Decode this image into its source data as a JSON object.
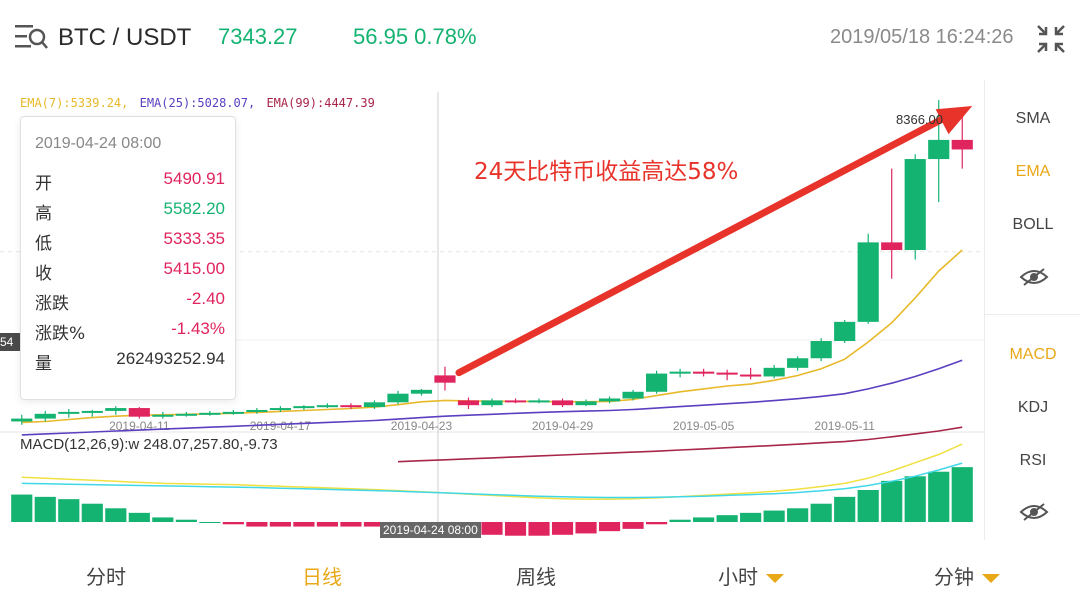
{
  "header": {
    "pair": "BTC / USDT",
    "price": "7343.27",
    "change": "56.95 0.78%",
    "timestamp": "2019/05/18 16:24:26"
  },
  "ema_legend": {
    "ema7": "EMA(7):5339.24,",
    "ema25": "EMA(25):5028.07,",
    "ema99": "EMA(99):4447.39"
  },
  "tooltip": {
    "date": "2019-04-24 08:00",
    "rows": [
      {
        "label": "开",
        "value": "5490.91",
        "color": "#e0245e"
      },
      {
        "label": "高",
        "value": "5582.20",
        "color": "#15b371"
      },
      {
        "label": "低",
        "value": "5333.35",
        "color": "#e0245e"
      },
      {
        "label": "收",
        "value": "5415.00",
        "color": "#e0245e"
      },
      {
        "label": "涨跌",
        "value": "-2.40",
        "color": "#e0245e"
      },
      {
        "label": "涨跌%",
        "value": "-1.43%",
        "color": "#e0245e"
      },
      {
        "label": "量",
        "value": "262493252.94",
        "color": "#333333"
      }
    ]
  },
  "annotation": "24天比特币收益高达58%",
  "high_label": "8366.00",
  "left_tag": "54",
  "crosshair_label": "2019-04-24 08:00",
  "macd_label": "MACD(12,26,9):w 248.07,257.80,-9.73",
  "side_menu": {
    "sma": "SMA",
    "ema": "EMA",
    "boll": "BOLL",
    "macd": "MACD",
    "kdj": "KDJ",
    "rsi": "RSI"
  },
  "bottom_tabs": {
    "fenshi": "分时",
    "rixian": "日线",
    "zhouxian": "周线",
    "xiaoshi": "小时",
    "fenzhong": "分钟"
  },
  "colors": {
    "up": "#15b371",
    "down": "#e0245e",
    "ema7": "#e8b92a",
    "ema25": "#5b3fc0",
    "ema99": "#a8264a",
    "accent": "#e8a817",
    "arrow": "#e8332b"
  },
  "chart_data": {
    "type": "candlestick",
    "x_ticks": [
      "2019-04-11",
      "2019-04-17",
      "2019-04-23",
      "2019-04-29",
      "2019-05-05",
      "2019-05-11"
    ],
    "ylim": [
      4900,
      8450
    ],
    "candles": [
      {
        "date": "2019-04-06",
        "open": 5010,
        "high": 5080,
        "close": 5040,
        "low": 4975
      },
      {
        "date": "2019-04-07",
        "open": 5040,
        "high": 5120,
        "close": 5090,
        "low": 5010
      },
      {
        "date": "2019-04-08",
        "open": 5090,
        "high": 5140,
        "close": 5110,
        "low": 5050
      },
      {
        "date": "2019-04-09",
        "open": 5110,
        "high": 5130,
        "close": 5120,
        "low": 5060
      },
      {
        "date": "2019-04-10",
        "open": 5120,
        "high": 5170,
        "close": 5150,
        "low": 5080
      },
      {
        "date": "2019-04-11",
        "open": 5150,
        "high": 5160,
        "close": 5060,
        "low": 5040
      },
      {
        "date": "2019-04-12",
        "open": 5070,
        "high": 5110,
        "close": 5080,
        "low": 5040
      },
      {
        "date": "2019-04-13",
        "open": 5080,
        "high": 5110,
        "close": 5090,
        "low": 5060
      },
      {
        "date": "2019-04-14",
        "open": 5090,
        "high": 5120,
        "close": 5100,
        "low": 5070
      },
      {
        "date": "2019-04-15",
        "open": 5100,
        "high": 5130,
        "close": 5110,
        "low": 5080
      },
      {
        "date": "2019-04-16",
        "open": 5110,
        "high": 5150,
        "close": 5130,
        "low": 5090
      },
      {
        "date": "2019-04-17",
        "open": 5130,
        "high": 5170,
        "close": 5150,
        "low": 5110
      },
      {
        "date": "2019-04-18",
        "open": 5150,
        "high": 5180,
        "close": 5170,
        "low": 5130
      },
      {
        "date": "2019-04-19",
        "open": 5170,
        "high": 5200,
        "close": 5180,
        "low": 5150
      },
      {
        "date": "2019-04-20",
        "open": 5180,
        "high": 5200,
        "close": 5160,
        "low": 5140
      },
      {
        "date": "2019-04-21",
        "open": 5160,
        "high": 5230,
        "close": 5210,
        "low": 5140
      },
      {
        "date": "2019-04-22",
        "open": 5210,
        "high": 5330,
        "close": 5300,
        "low": 5190
      },
      {
        "date": "2019-04-23",
        "open": 5300,
        "high": 5350,
        "close": 5340,
        "low": 5280
      },
      {
        "date": "2019-04-24",
        "open": 5490.91,
        "high": 5582.2,
        "close": 5415.0,
        "low": 5333.35
      },
      {
        "date": "2019-04-25",
        "open": 5230,
        "high": 5260,
        "close": 5180,
        "low": 5140
      },
      {
        "date": "2019-04-26",
        "open": 5180,
        "high": 5250,
        "close": 5230,
        "low": 5160
      },
      {
        "date": "2019-04-27",
        "open": 5230,
        "high": 5250,
        "close": 5220,
        "low": 5200
      },
      {
        "date": "2019-04-28",
        "open": 5220,
        "high": 5250,
        "close": 5230,
        "low": 5200
      },
      {
        "date": "2019-04-29",
        "open": 5230,
        "high": 5250,
        "close": 5180,
        "low": 5160
      },
      {
        "date": "2019-04-30",
        "open": 5180,
        "high": 5240,
        "close": 5220,
        "low": 5170
      },
      {
        "date": "2019-05-01",
        "open": 5220,
        "high": 5270,
        "close": 5250,
        "low": 5200
      },
      {
        "date": "2019-05-02",
        "open": 5250,
        "high": 5340,
        "close": 5320,
        "low": 5230
      },
      {
        "date": "2019-05-03",
        "open": 5320,
        "high": 5540,
        "close": 5510,
        "low": 5300
      },
      {
        "date": "2019-05-04",
        "open": 5510,
        "high": 5560,
        "close": 5530,
        "low": 5470
      },
      {
        "date": "2019-05-05",
        "open": 5530,
        "high": 5560,
        "close": 5520,
        "low": 5480
      },
      {
        "date": "2019-05-06",
        "open": 5520,
        "high": 5550,
        "close": 5500,
        "low": 5440
      },
      {
        "date": "2019-05-07",
        "open": 5500,
        "high": 5570,
        "close": 5480,
        "low": 5450
      },
      {
        "date": "2019-05-08",
        "open": 5480,
        "high": 5600,
        "close": 5570,
        "low": 5460
      },
      {
        "date": "2019-05-09",
        "open": 5570,
        "high": 5690,
        "close": 5670,
        "low": 5540
      },
      {
        "date": "2019-05-10",
        "open": 5670,
        "high": 5880,
        "close": 5850,
        "low": 5640
      },
      {
        "date": "2019-05-11",
        "open": 5850,
        "high": 6070,
        "close": 6050,
        "low": 5830
      },
      {
        "date": "2019-05-12",
        "open": 6050,
        "high": 6970,
        "close": 6880,
        "low": 6030
      },
      {
        "date": "2019-05-13",
        "open": 6880,
        "high": 7650,
        "close": 6800,
        "low": 6500
      },
      {
        "date": "2019-05-14",
        "open": 6800,
        "high": 7800,
        "close": 7750,
        "low": 6700
      },
      {
        "date": "2019-05-15",
        "open": 7750,
        "high": 8366,
        "close": 7950,
        "low": 7300
      },
      {
        "date": "2019-05-16",
        "open": 7950,
        "high": 8200,
        "close": 7850,
        "low": 7650
      }
    ],
    "ema": [
      {
        "name": "EMA(7)",
        "values": [
          5000,
          5010,
          5030,
          5050,
          5065,
          5075,
          5080,
          5085,
          5090,
          5095,
          5105,
          5115,
          5125,
          5135,
          5145,
          5160,
          5185,
          5215,
          5230,
          5225,
          5222,
          5220,
          5220,
          5215,
          5215,
          5220,
          5240,
          5280,
          5320,
          5350,
          5380,
          5400,
          5440,
          5490,
          5560,
          5660,
          5840,
          6040,
          6300,
          6580,
          6800
        ]
      },
      {
        "name": "EMA(25)",
        "values": [
          4870,
          4880,
          4890,
          4900,
          4910,
          4920,
          4930,
          4940,
          4950,
          4960,
          4970,
          4980,
          4990,
          5000,
          5010,
          5020,
          5035,
          5050,
          5065,
          5075,
          5085,
          5095,
          5105,
          5112,
          5118,
          5125,
          5135,
          5150,
          5165,
          5180,
          5195,
          5210,
          5228,
          5248,
          5272,
          5300,
          5350,
          5410,
          5480,
          5560,
          5650
        ]
      },
      {
        "name": "EMA(99)",
        "values": [
          null,
          null,
          null,
          null,
          null,
          null,
          null,
          null,
          null,
          null,
          null,
          null,
          null,
          null,
          null,
          null,
          4590,
          4600,
          4610,
          4620,
          4630,
          4640,
          4650,
          4660,
          4670,
          4680,
          4690,
          4700,
          4712,
          4724,
          4736,
          4748,
          4760,
          4773,
          4787,
          4800,
          4822,
          4850,
          4880,
          4910,
          4950
        ]
      }
    ],
    "macd": {
      "label": "MACD(12,26,9)",
      "values": {
        "dif": 248.07,
        "dea": 257.8,
        "macd": -9.73
      },
      "histogram": [
        60,
        55,
        50,
        40,
        30,
        20,
        10,
        5,
        0,
        -5,
        -10,
        -10,
        -10,
        -10,
        -10,
        -10,
        -12,
        -15,
        -20,
        -25,
        -28,
        -30,
        -30,
        -28,
        -25,
        -20,
        -15,
        -5,
        5,
        10,
        15,
        20,
        25,
        30,
        40,
        55,
        70,
        90,
        100,
        110,
        120
      ],
      "dif_line": [
        180,
        175,
        170,
        165,
        160,
        155,
        150,
        148,
        146,
        144,
        140,
        136,
        132,
        128,
        124,
        120,
        115,
        110,
        104,
        98,
        92,
        86,
        80,
        76,
        74,
        74,
        76,
        80,
        86,
        92,
        98,
        104,
        112,
        122,
        135,
        150,
        175,
        210,
        250,
        290,
        340
      ],
      "dea_line": [
        150,
        148,
        146,
        144,
        142,
        140,
        138,
        136,
        134,
        132,
        130,
        127,
        124,
        121,
        118,
        115,
        112,
        108,
        104,
        100,
        96,
        92,
        88,
        85,
        83,
        82,
        82,
        83,
        85,
        88,
        92,
        96,
        100,
        106,
        114,
        124,
        140,
        160,
        185,
        215,
        248
      ]
    }
  }
}
